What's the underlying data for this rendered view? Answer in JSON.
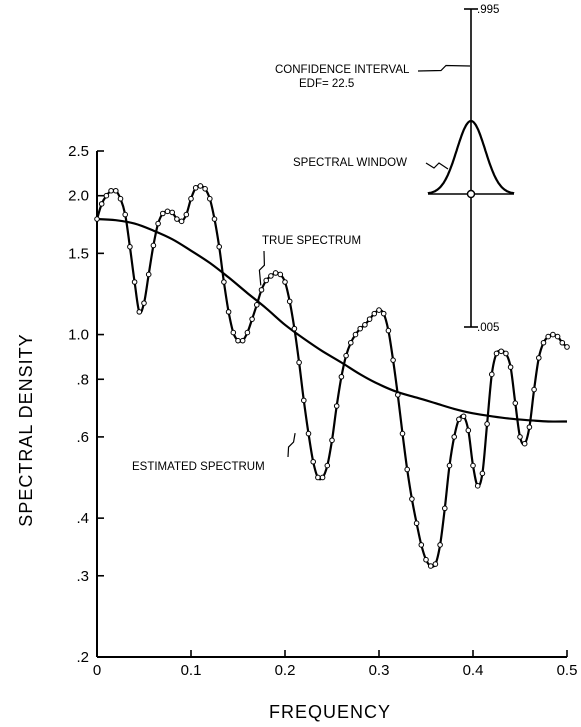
{
  "chart_data": {
    "type": "line",
    "xlabel": "FREQUENCY",
    "ylabel": "SPECTRAL DENSITY",
    "xlim": [
      0,
      0.5
    ],
    "ylim": [
      0.2,
      2.5
    ],
    "yscale": "log",
    "x_ticks": [
      0,
      0.1,
      0.2,
      0.3,
      0.4,
      0.5
    ],
    "x_tick_labels": [
      "0",
      "0.1",
      "0.2",
      "0.3",
      "0.4",
      "0.5"
    ],
    "y_ticks": [
      0.2,
      0.3,
      0.4,
      0.6,
      0.8,
      1.0,
      1.5,
      2.0,
      2.5
    ],
    "y_tick_labels": [
      ".2",
      ".3",
      ".4",
      ".6",
      ".8",
      "1.0",
      "1.5",
      "2.0",
      "2.5"
    ],
    "grid": false,
    "series": [
      {
        "name": "TRUE SPECTRUM",
        "markers": false,
        "points": [
          [
            0,
            1.78
          ],
          [
            0.02,
            1.77
          ],
          [
            0.04,
            1.74
          ],
          [
            0.06,
            1.68
          ],
          [
            0.08,
            1.61
          ],
          [
            0.1,
            1.52
          ],
          [
            0.12,
            1.43
          ],
          [
            0.14,
            1.33
          ],
          [
            0.16,
            1.23
          ],
          [
            0.18,
            1.14
          ],
          [
            0.2,
            1.05
          ],
          [
            0.22,
            0.98
          ],
          [
            0.24,
            0.92
          ],
          [
            0.26,
            0.87
          ],
          [
            0.28,
            0.82
          ],
          [
            0.3,
            0.78
          ],
          [
            0.32,
            0.75
          ],
          [
            0.34,
            0.73
          ],
          [
            0.36,
            0.71
          ],
          [
            0.38,
            0.69
          ],
          [
            0.4,
            0.675
          ],
          [
            0.42,
            0.665
          ],
          [
            0.44,
            0.657
          ],
          [
            0.46,
            0.652
          ],
          [
            0.48,
            0.648
          ],
          [
            0.5,
            0.648
          ]
        ]
      },
      {
        "name": "ESTIMATED SPECTRUM",
        "markers": true,
        "points": [
          [
            0,
            1.78
          ],
          [
            0.005,
            1.92
          ],
          [
            0.01,
            2.0
          ],
          [
            0.015,
            2.05
          ],
          [
            0.02,
            2.05
          ],
          [
            0.025,
            1.97
          ],
          [
            0.03,
            1.82
          ],
          [
            0.035,
            1.55
          ],
          [
            0.04,
            1.3
          ],
          [
            0.045,
            1.12
          ],
          [
            0.05,
            1.17
          ],
          [
            0.055,
            1.35
          ],
          [
            0.06,
            1.56
          ],
          [
            0.065,
            1.74
          ],
          [
            0.07,
            1.83
          ],
          [
            0.075,
            1.85
          ],
          [
            0.08,
            1.84
          ],
          [
            0.085,
            1.78
          ],
          [
            0.09,
            1.76
          ],
          [
            0.095,
            1.82
          ],
          [
            0.1,
            1.97
          ],
          [
            0.105,
            2.08
          ],
          [
            0.11,
            2.1
          ],
          [
            0.115,
            2.07
          ],
          [
            0.12,
            1.97
          ],
          [
            0.125,
            1.78
          ],
          [
            0.13,
            1.55
          ],
          [
            0.135,
            1.3
          ],
          [
            0.14,
            1.12
          ],
          [
            0.145,
            1.01
          ],
          [
            0.15,
            0.97
          ],
          [
            0.155,
            0.97
          ],
          [
            0.16,
            1.01
          ],
          [
            0.165,
            1.08
          ],
          [
            0.17,
            1.16
          ],
          [
            0.175,
            1.25
          ],
          [
            0.18,
            1.31
          ],
          [
            0.185,
            1.34
          ],
          [
            0.19,
            1.36
          ],
          [
            0.195,
            1.35
          ],
          [
            0.2,
            1.3
          ],
          [
            0.205,
            1.18
          ],
          [
            0.21,
            1.03
          ],
          [
            0.215,
            0.87
          ],
          [
            0.22,
            0.72
          ],
          [
            0.225,
            0.61
          ],
          [
            0.23,
            0.53
          ],
          [
            0.235,
            0.49
          ],
          [
            0.24,
            0.49
          ],
          [
            0.245,
            0.52
          ],
          [
            0.25,
            0.59
          ],
          [
            0.255,
            0.7
          ],
          [
            0.26,
            0.81
          ],
          [
            0.265,
            0.9
          ],
          [
            0.27,
            0.96
          ],
          [
            0.275,
            1.0
          ],
          [
            0.28,
            1.03
          ],
          [
            0.285,
            1.05
          ],
          [
            0.29,
            1.08
          ],
          [
            0.295,
            1.11
          ],
          [
            0.3,
            1.13
          ],
          [
            0.305,
            1.11
          ],
          [
            0.31,
            1.02
          ],
          [
            0.315,
            0.88
          ],
          [
            0.32,
            0.74
          ],
          [
            0.325,
            0.61
          ],
          [
            0.33,
            0.51
          ],
          [
            0.335,
            0.44
          ],
          [
            0.34,
            0.39
          ],
          [
            0.345,
            0.35
          ],
          [
            0.35,
            0.325
          ],
          [
            0.355,
            0.315
          ],
          [
            0.36,
            0.318
          ],
          [
            0.365,
            0.35
          ],
          [
            0.37,
            0.42
          ],
          [
            0.375,
            0.52
          ],
          [
            0.38,
            0.6
          ],
          [
            0.385,
            0.655
          ],
          [
            0.39,
            0.665
          ],
          [
            0.395,
            0.62
          ],
          [
            0.4,
            0.52
          ],
          [
            0.405,
            0.47
          ],
          [
            0.41,
            0.5
          ],
          [
            0.415,
            0.64
          ],
          [
            0.42,
            0.82
          ],
          [
            0.425,
            0.91
          ],
          [
            0.43,
            0.92
          ],
          [
            0.435,
            0.91
          ],
          [
            0.44,
            0.85
          ],
          [
            0.445,
            0.71
          ],
          [
            0.45,
            0.6
          ],
          [
            0.455,
            0.58
          ],
          [
            0.46,
            0.63
          ],
          [
            0.465,
            0.76
          ],
          [
            0.47,
            0.89
          ],
          [
            0.475,
            0.96
          ],
          [
            0.48,
            0.99
          ],
          [
            0.485,
            1.0
          ],
          [
            0.49,
            0.99
          ],
          [
            0.495,
            0.96
          ],
          [
            0.5,
            0.94
          ]
        ]
      }
    ],
    "annotations": [
      {
        "id": "true_spectrum",
        "text": "TRUE SPECTRUM",
        "target": [
          0.17,
          1.24
        ]
      },
      {
        "id": "estimated_spectrum",
        "text": "ESTIMATED SPECTRUM",
        "target": [
          0.215,
          0.63
        ]
      },
      {
        "id": "spectral_window",
        "text": "SPECTRAL WINDOW"
      },
      {
        "id": "confidence_interval",
        "text": "CONFIDENCE INTERVAL",
        "subtext": "EDF= 22.5"
      }
    ],
    "inset": {
      "confidence_interval": {
        "upper_label": ".995",
        "lower_label": ".005",
        "edf": 22.5
      },
      "spectral_window": "bell-shaped window centred on the interval's midpoint"
    }
  }
}
